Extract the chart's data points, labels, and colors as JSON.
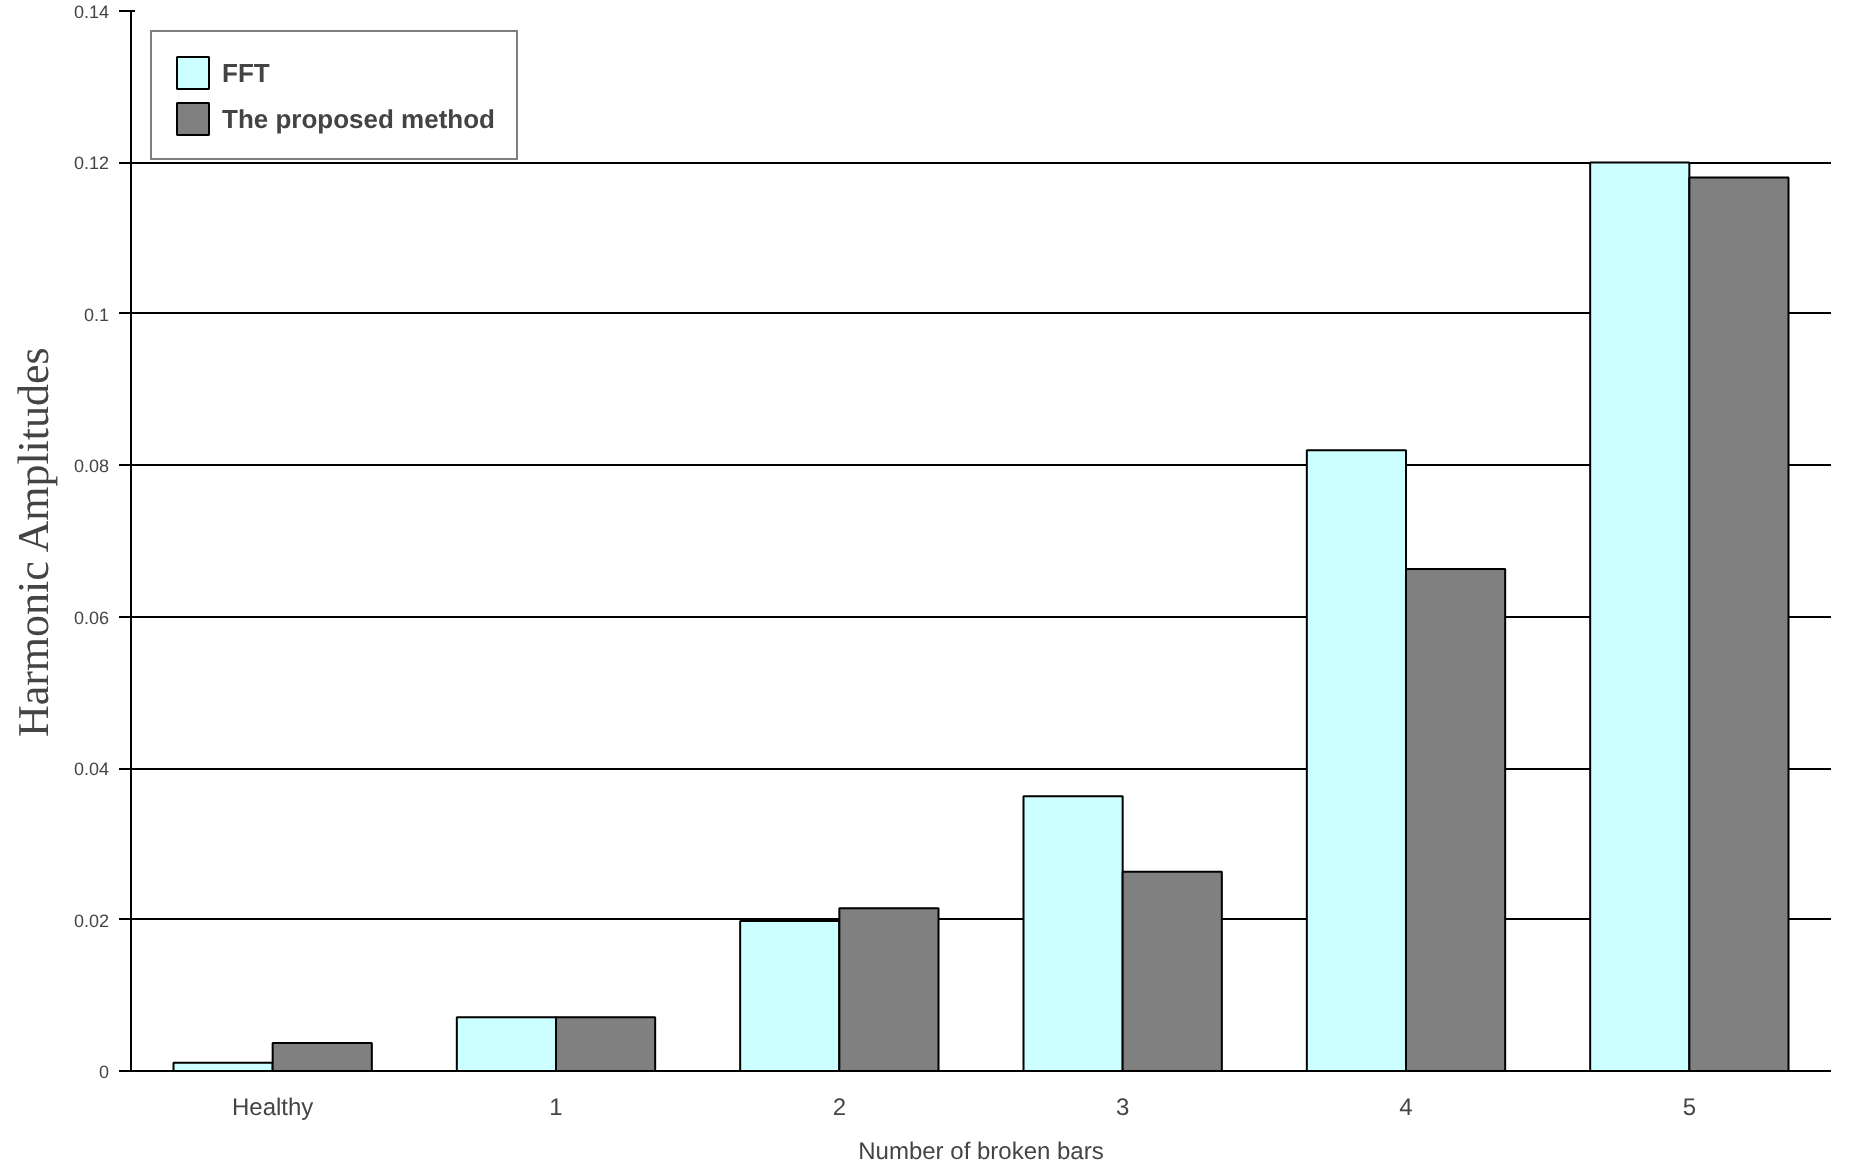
{
  "chart_data": {
    "type": "bar",
    "xlabel": "Number of broken bars",
    "ylabel": "Harmonic Amplitudes",
    "categories": [
      "Healthy",
      "1",
      "2",
      "3",
      "4",
      "5"
    ],
    "series": [
      {
        "name": "FFT",
        "color": "#ccffff",
        "values": [
          0.0011,
          0.0071,
          0.0198,
          0.0363,
          0.082,
          0.12
        ]
      },
      {
        "name": "The proposed method",
        "color": "#808080",
        "values": [
          0.0037,
          0.0071,
          0.0215,
          0.0263,
          0.0663,
          0.118
        ]
      }
    ],
    "ylim": [
      0,
      0.14
    ],
    "yticks": [
      0,
      0.02,
      0.04,
      0.06,
      0.08,
      0.1,
      0.12,
      0.14
    ],
    "grid": "y",
    "legend": "top left"
  }
}
